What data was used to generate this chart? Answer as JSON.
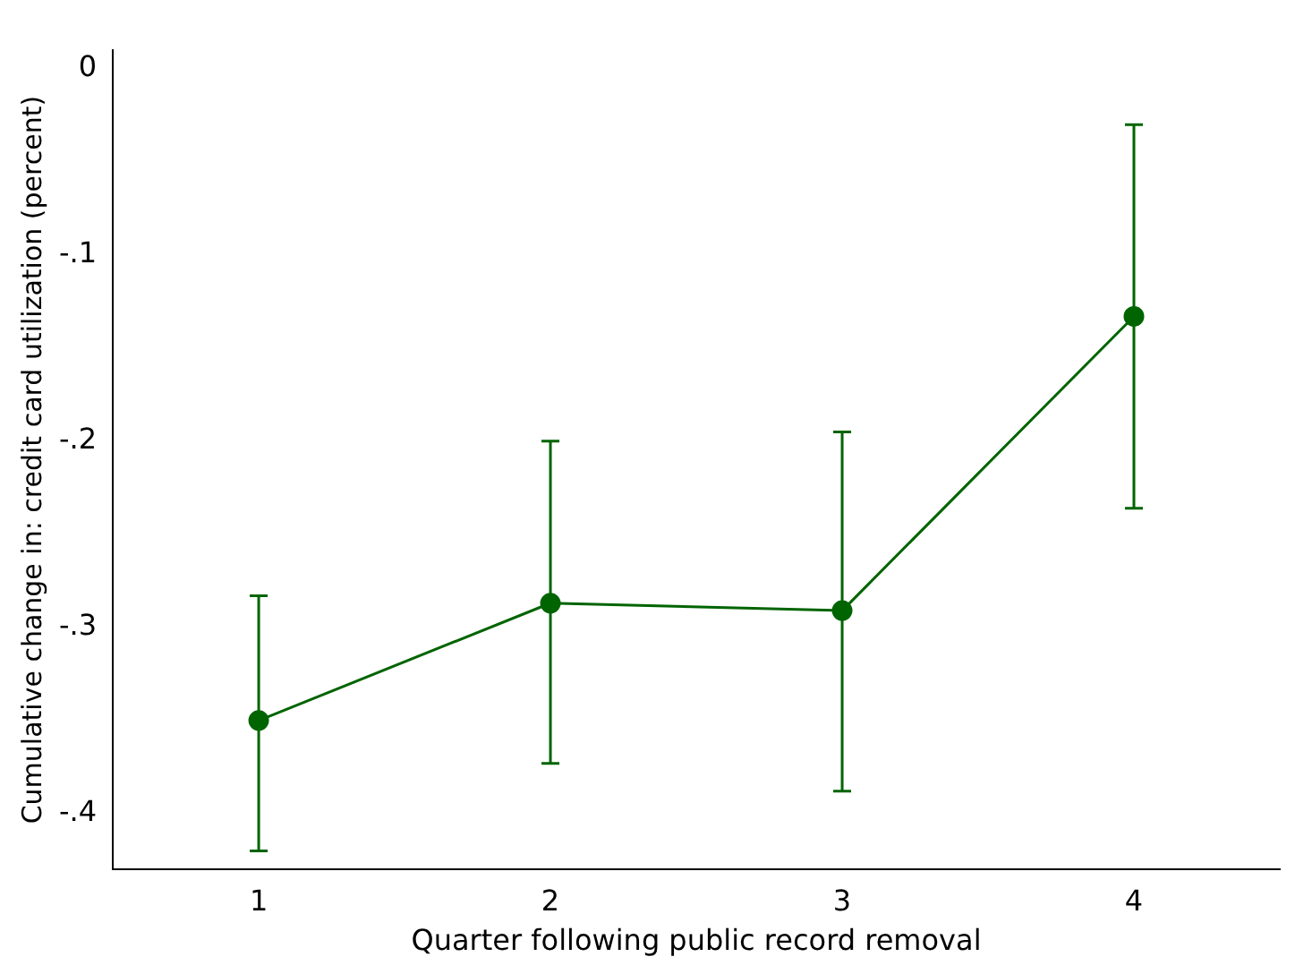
{
  "chart_data": {
    "type": "line",
    "xlabel": "Quarter following public record removal",
    "ylabel": "Cumulative change in: credit card utilization (percent)",
    "x": [
      1,
      2,
      3,
      4
    ],
    "series": [
      {
        "color": "#006400",
        "values": [
          -0.35,
          -0.287,
          -0.291,
          -0.133
        ],
        "errors": [
          [
            -0.42,
            -0.283
          ],
          [
            -0.373,
            -0.2
          ],
          [
            -0.388,
            -0.195
          ],
          [
            -0.236,
            -0.03
          ]
        ]
      }
    ],
    "xlim": [
      0.5,
      4.5
    ],
    "xticks": [
      1,
      2,
      3,
      4
    ],
    "ylim": [
      -0.43,
      0.01
    ],
    "yticks": [
      {
        "value": 0,
        "label": "0"
      },
      {
        "value": -0.1,
        "label": "-.1"
      },
      {
        "value": -0.2,
        "label": "-.2"
      },
      {
        "value": -0.3,
        "label": "-.3"
      },
      {
        "value": -0.4,
        "label": "-.4"
      }
    ],
    "grid": false,
    "legend": false,
    "marker": "circle",
    "line_style": "solid"
  }
}
